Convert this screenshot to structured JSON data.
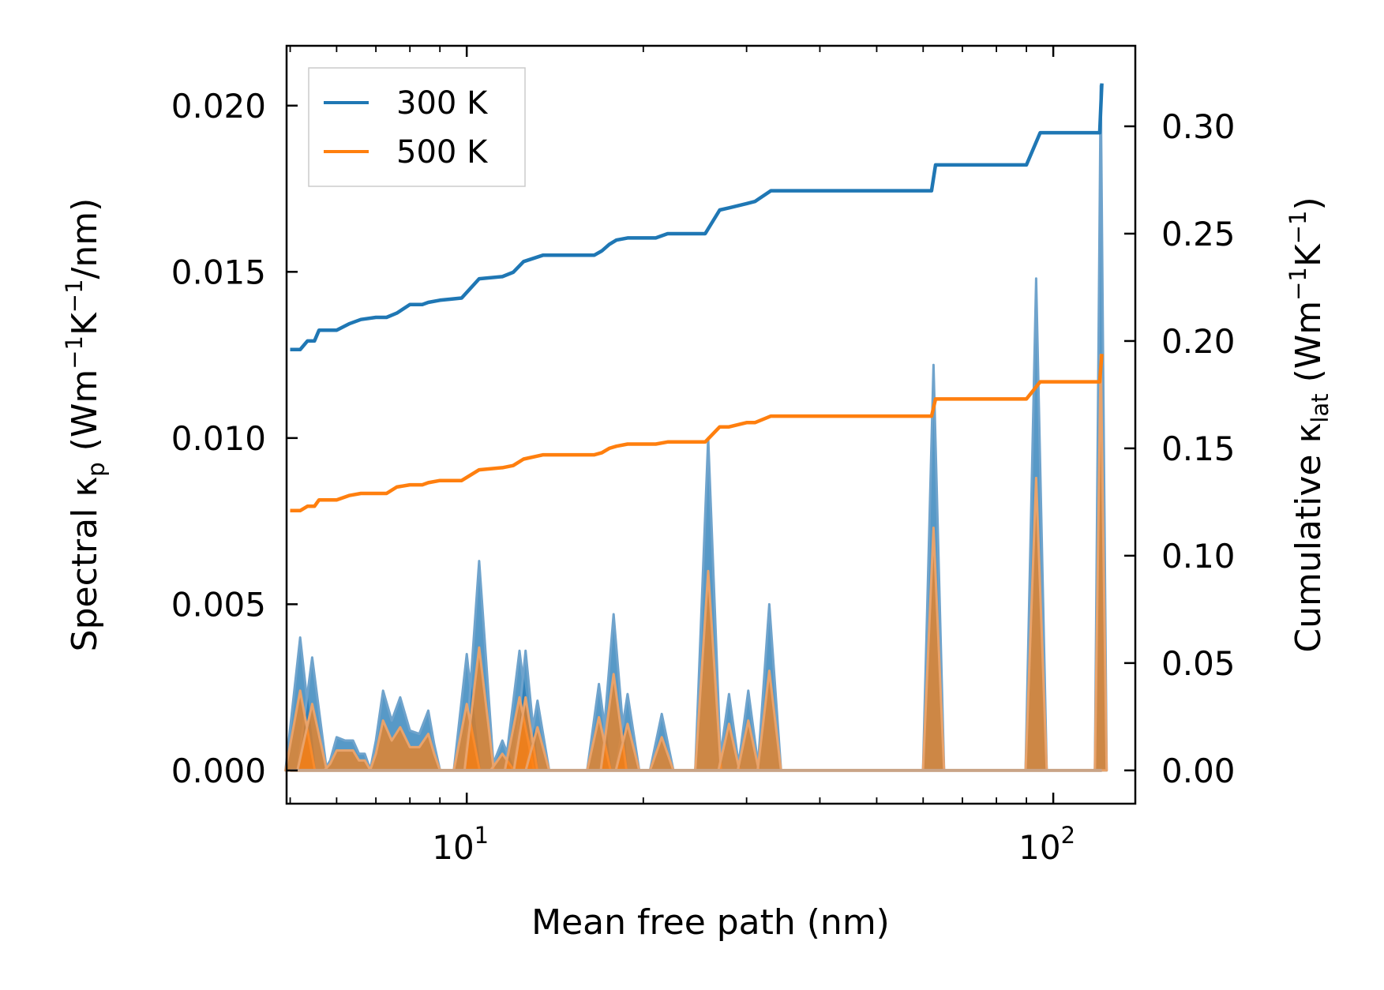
{
  "chart_data": {
    "type": "line",
    "x_scale": "log",
    "xlabel": "Mean free path (nm)",
    "xlim": [
      4.93,
      138
    ],
    "x_tick_labels": [
      {
        "value": 10,
        "base": "10",
        "exp": "1"
      },
      {
        "value": 100,
        "base": "10",
        "exp": "2"
      }
    ],
    "y_left": {
      "label_main": "Spectral κ",
      "label_sub": "p",
      "label_unit_open": " (Wm",
      "label_sup1": "−1",
      "label_mid": "K",
      "label_sup2": "−1",
      "label_close": "/nm)",
      "ylim": [
        -0.001,
        0.0218
      ],
      "ticks": [
        0.0,
        0.005,
        0.01,
        0.015,
        0.02
      ],
      "tick_labels": [
        "0.000",
        "0.005",
        "0.010",
        "0.015",
        "0.020"
      ]
    },
    "y_right": {
      "label_main": "Cumulative κ",
      "label_sub": "lat",
      "label_unit_open": " (Wm",
      "label_sup1": "−1",
      "label_mid": "K",
      "label_sup2": "−1",
      "label_close": ")",
      "ylim": [
        -0.0155,
        0.3375
      ],
      "ticks": [
        0.0,
        0.05,
        0.1,
        0.15,
        0.2,
        0.25,
        0.3
      ],
      "tick_labels": [
        "0.00",
        "0.05",
        "0.10",
        "0.15",
        "0.20",
        "0.25",
        "0.30"
      ]
    },
    "legend": {
      "position": "top-left",
      "entries": [
        {
          "name": "300 K",
          "color": "#1f77b4"
        },
        {
          "name": "500 K",
          "color": "#ff7f0e"
        }
      ]
    },
    "cumulative_series": [
      {
        "name": "300 K",
        "color": "#1f77b4",
        "x": [
          5.0,
          5.2,
          5.35,
          5.5,
          5.6,
          5.75,
          6.0,
          6.3,
          6.6,
          7.0,
          7.3,
          7.6,
          8.0,
          8.4,
          8.6,
          9.0,
          9.8,
          10.5,
          11.5,
          12.0,
          12.5,
          13.5,
          16.5,
          17.0,
          17.5,
          18.0,
          18.8,
          21.0,
          22.0,
          25.5,
          27.0,
          28.0,
          30.0,
          31.0,
          33.0,
          62.0,
          63.0,
          90.0,
          95.0,
          120.0,
          121.0
        ],
        "y": [
          0.196,
          0.196,
          0.2,
          0.2,
          0.205,
          0.205,
          0.205,
          0.208,
          0.21,
          0.211,
          0.211,
          0.213,
          0.217,
          0.217,
          0.218,
          0.219,
          0.22,
          0.229,
          0.23,
          0.232,
          0.237,
          0.24,
          0.24,
          0.242,
          0.245,
          0.247,
          0.248,
          0.248,
          0.25,
          0.25,
          0.261,
          0.262,
          0.264,
          0.265,
          0.27,
          0.27,
          0.282,
          0.282,
          0.297,
          0.297,
          0.32
        ]
      },
      {
        "name": "500 K",
        "color": "#ff7f0e",
        "x": [
          5.0,
          5.2,
          5.35,
          5.5,
          5.6,
          5.75,
          6.0,
          6.3,
          6.6,
          7.0,
          7.3,
          7.6,
          8.0,
          8.4,
          8.6,
          9.0,
          9.8,
          10.5,
          11.5,
          12.0,
          12.5,
          13.5,
          16.5,
          17.0,
          17.5,
          18.0,
          18.8,
          21.0,
          22.0,
          25.5,
          27.0,
          28.0,
          30.0,
          31.0,
          33.0,
          62.0,
          63.0,
          90.0,
          95.0,
          120.0,
          121.0
        ],
        "y": [
          0.121,
          0.121,
          0.123,
          0.123,
          0.126,
          0.126,
          0.126,
          0.128,
          0.129,
          0.129,
          0.129,
          0.132,
          0.133,
          0.133,
          0.134,
          0.135,
          0.135,
          0.14,
          0.141,
          0.142,
          0.145,
          0.147,
          0.147,
          0.148,
          0.15,
          0.151,
          0.152,
          0.152,
          0.153,
          0.153,
          0.16,
          0.16,
          0.162,
          0.162,
          0.165,
          0.165,
          0.173,
          0.173,
          0.181,
          0.181,
          0.194
        ]
      }
    ],
    "spectral_series": [
      {
        "name": "300 K",
        "color": "#1f77b4",
        "peaks": [
          {
            "x": 5.2,
            "y": 0.004,
            "w": 0.025
          },
          {
            "x": 5.45,
            "y": 0.0034,
            "w": 0.025
          },
          {
            "x": 10.0,
            "y": 0.0035,
            "w": 0.022
          },
          {
            "x": 10.5,
            "y": 0.0063,
            "w": 0.025
          },
          {
            "x": 11.5,
            "y": 0.0009,
            "w": 0.02
          },
          {
            "x": 12.3,
            "y": 0.0036,
            "w": 0.025
          },
          {
            "x": 12.6,
            "y": 0.0036,
            "w": 0.02
          },
          {
            "x": 13.2,
            "y": 0.0021,
            "w": 0.02
          },
          {
            "x": 16.8,
            "y": 0.0026,
            "w": 0.02
          },
          {
            "x": 17.8,
            "y": 0.0047,
            "w": 0.022
          },
          {
            "x": 18.8,
            "y": 0.0023,
            "w": 0.02
          },
          {
            "x": 21.5,
            "y": 0.0017,
            "w": 0.02
          },
          {
            "x": 25.8,
            "y": 0.01,
            "w": 0.022
          },
          {
            "x": 28.0,
            "y": 0.0023,
            "w": 0.018
          },
          {
            "x": 30.2,
            "y": 0.0024,
            "w": 0.018
          },
          {
            "x": 32.8,
            "y": 0.005,
            "w": 0.02
          },
          {
            "x": 62.5,
            "y": 0.0122,
            "w": 0.018
          },
          {
            "x": 93.5,
            "y": 0.0148,
            "w": 0.018
          },
          {
            "x": 120.5,
            "y": 0.0206,
            "w": 0.01
          }
        ],
        "clusters": [
          {
            "x": [
              5.85,
              6.0,
              6.2,
              6.4,
              6.55,
              6.7
            ],
            "y": [
              0.0003,
              0.001,
              0.0009,
              0.0009,
              0.0005,
              0.0005
            ]
          },
          {
            "x": [
              7.0,
              7.2,
              7.45,
              7.7,
              8.0,
              8.3,
              8.6,
              8.8
            ],
            "y": [
              0.0009,
              0.0024,
              0.0015,
              0.0022,
              0.0012,
              0.0011,
              0.0018,
              0.0008
            ]
          }
        ]
      },
      {
        "name": "500 K",
        "color": "#ff7f0e",
        "peaks": [
          {
            "x": 5.2,
            "y": 0.0024,
            "w": 0.025
          },
          {
            "x": 5.45,
            "y": 0.002,
            "w": 0.025
          },
          {
            "x": 10.0,
            "y": 0.002,
            "w": 0.022
          },
          {
            "x": 10.5,
            "y": 0.0037,
            "w": 0.025
          },
          {
            "x": 11.5,
            "y": 0.0005,
            "w": 0.02
          },
          {
            "x": 12.3,
            "y": 0.0022,
            "w": 0.025
          },
          {
            "x": 12.6,
            "y": 0.0022,
            "w": 0.02
          },
          {
            "x": 13.2,
            "y": 0.0013,
            "w": 0.02
          },
          {
            "x": 16.8,
            "y": 0.0016,
            "w": 0.02
          },
          {
            "x": 17.8,
            "y": 0.0029,
            "w": 0.022
          },
          {
            "x": 18.8,
            "y": 0.0014,
            "w": 0.02
          },
          {
            "x": 21.5,
            "y": 0.001,
            "w": 0.02
          },
          {
            "x": 25.8,
            "y": 0.006,
            "w": 0.022
          },
          {
            "x": 28.0,
            "y": 0.0014,
            "w": 0.018
          },
          {
            "x": 30.2,
            "y": 0.0015,
            "w": 0.018
          },
          {
            "x": 32.8,
            "y": 0.003,
            "w": 0.02
          },
          {
            "x": 62.5,
            "y": 0.0073,
            "w": 0.018
          },
          {
            "x": 93.5,
            "y": 0.0088,
            "w": 0.018
          },
          {
            "x": 120.5,
            "y": 0.0125,
            "w": 0.01
          }
        ],
        "clusters": [
          {
            "x": [
              5.85,
              6.0,
              6.2,
              6.4,
              6.55,
              6.7
            ],
            "y": [
              0.0002,
              0.0006,
              0.0006,
              0.0006,
              0.0003,
              0.0003
            ]
          },
          {
            "x": [
              7.0,
              7.2,
              7.45,
              7.7,
              8.0,
              8.3,
              8.6,
              8.8
            ],
            "y": [
              0.0005,
              0.0015,
              0.0009,
              0.0013,
              0.0007,
              0.0007,
              0.0011,
              0.0005
            ]
          }
        ]
      }
    ]
  }
}
